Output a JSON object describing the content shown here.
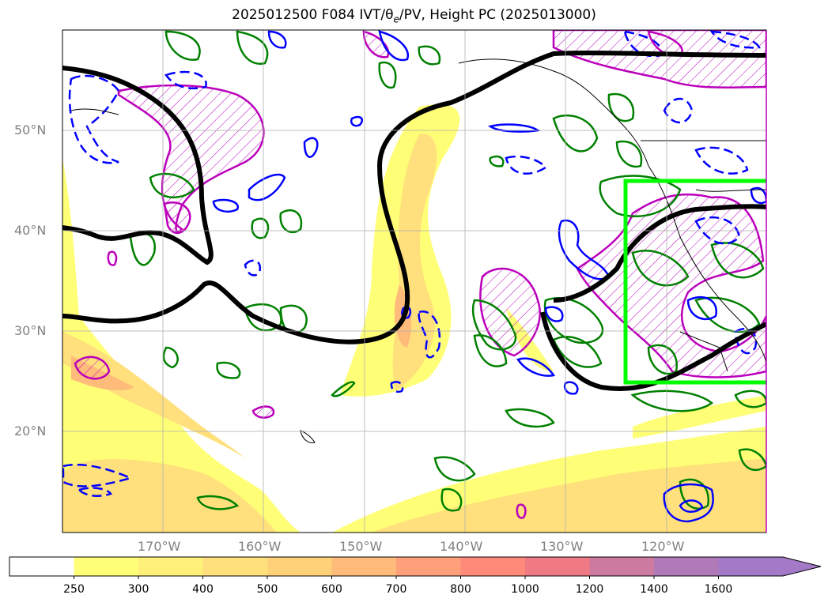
{
  "title": "2025012500 F084 IVT/θe/PV, Height PC (2025013000)",
  "lat_labels": [
    "50°N",
    "40°N",
    "30°N",
    "20°N"
  ],
  "lon_labels": [
    "170°W",
    "160°W",
    "150°W",
    "140°W",
    "130°W",
    "120°W"
  ],
  "colorbar": {
    "ticks": [
      "250",
      "300",
      "400",
      "500",
      "600",
      "700",
      "800",
      "1000",
      "1200",
      "1400",
      "1600"
    ],
    "colors": [
      "#ffff77",
      "#fff07a",
      "#ffe07c",
      "#ffd27a",
      "#ffbb7a",
      "#ffa07a",
      "#ff8a7a",
      "#f07a84",
      "#cc7aa0",
      "#b07ab8",
      "#a47ac8"
    ]
  },
  "highlight_box_color": "#00ff00",
  "contour_colors": {
    "height": "#000000",
    "ivt_pos": "#008000",
    "theta_e": "#0000ff",
    "pv": "#bb00bb"
  }
}
